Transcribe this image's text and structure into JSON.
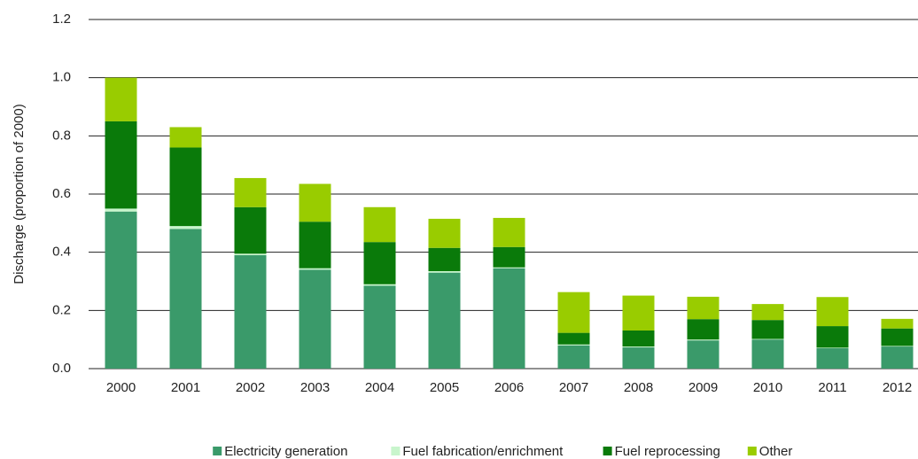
{
  "chart_data": {
    "type": "stacked_bar",
    "ylabel": "Discharge (proportion of 2000)",
    "categories": [
      "2000",
      "2001",
      "2002",
      "2003",
      "2004",
      "2005",
      "2006",
      "2007",
      "2008",
      "2009",
      "2010",
      "2011",
      "2012"
    ],
    "series": [
      {
        "name": "Electricity generation",
        "color": "#3a9a6a",
        "values": [
          0.54,
          0.48,
          0.39,
          0.34,
          0.285,
          0.33,
          0.345,
          0.08,
          0.073,
          0.097,
          0.1,
          0.07,
          0.076
        ]
      },
      {
        "name": "Fuel fabrication/enrichment",
        "color": "#c8f5cc",
        "values": [
          0.01,
          0.01,
          0.005,
          0.005,
          0.005,
          0.005,
          0.003,
          0.003,
          0.003,
          0.003,
          0.002,
          0.002,
          0.002
        ]
      },
      {
        "name": "Fuel reprocessing",
        "color": "#0a7a0a",
        "values": [
          0.3,
          0.27,
          0.16,
          0.16,
          0.145,
          0.08,
          0.07,
          0.04,
          0.055,
          0.07,
          0.065,
          0.074,
          0.06
        ]
      },
      {
        "name": "Other",
        "color": "#99cc00",
        "values": [
          0.15,
          0.07,
          0.1,
          0.13,
          0.12,
          0.1,
          0.1,
          0.14,
          0.12,
          0.077,
          0.055,
          0.1,
          0.033
        ]
      }
    ],
    "ylim": [
      0,
      1.2
    ],
    "yticks": [
      {
        "value": 0,
        "label": "0.0"
      },
      0.2,
      0.4,
      0.6,
      0.8,
      {
        "value": 1,
        "label": "1.0"
      },
      1.2
    ],
    "grid": true,
    "legend": "bottom"
  }
}
